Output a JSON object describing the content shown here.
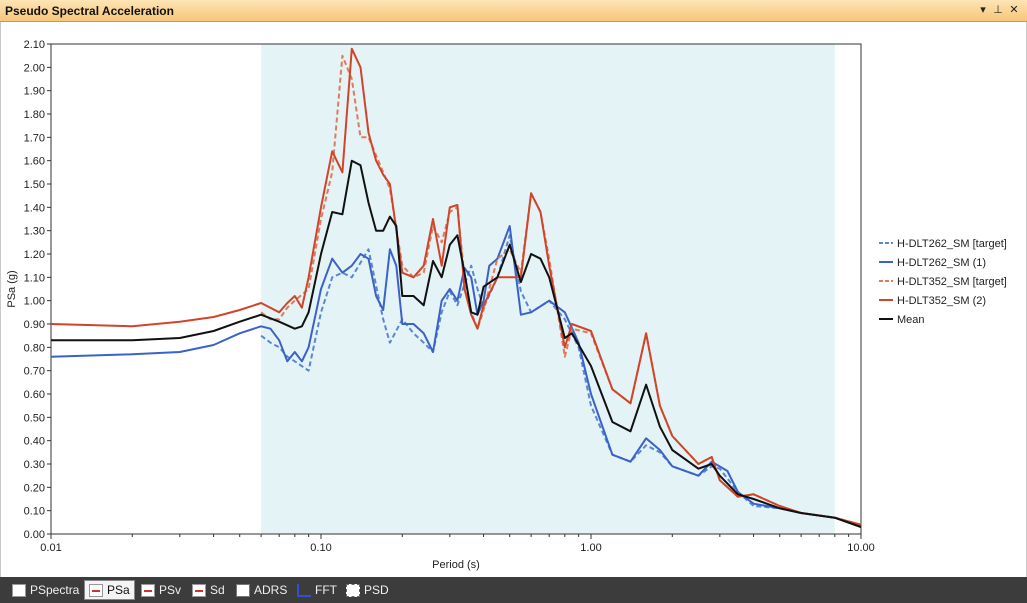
{
  "window": {
    "title": "Pseudo Spectral Acceleration",
    "controls": {
      "dropdown": "▾",
      "pin": "⊥",
      "close": "✕"
    }
  },
  "tabs": [
    {
      "label": "PSpectra",
      "icon": "document-icon",
      "active": false
    },
    {
      "label": "PSa",
      "icon": "chart-icon",
      "active": true
    },
    {
      "label": "PSv",
      "icon": "chart-icon",
      "active": false
    },
    {
      "label": "Sd",
      "icon": "chart-icon",
      "active": false
    },
    {
      "label": "ADRS",
      "icon": "grid-chart-icon",
      "active": false
    },
    {
      "label": "FFT",
      "icon": "fft-icon",
      "active": false
    },
    {
      "label": "PSD",
      "icon": "psd-icon",
      "active": false
    }
  ],
  "colors": {
    "highlight_band": "#e4f3f5",
    "blue": "#3a62c8",
    "red": "#d2442a",
    "mean": "#111111"
  },
  "chart_data": {
    "type": "line",
    "xlabel": "Period (s)",
    "ylabel": "PSa (g)",
    "x_scale": "log",
    "xlim": [
      0.01,
      10.0
    ],
    "ylim": [
      0.0,
      2.1
    ],
    "x_ticks": [
      "0.01",
      "0.10",
      "1.00",
      "10.00"
    ],
    "y_ticks": [
      "0.00",
      "0.10",
      "0.20",
      "0.30",
      "0.40",
      "0.50",
      "0.60",
      "0.70",
      "0.80",
      "0.90",
      "1.00",
      "1.10",
      "1.20",
      "1.30",
      "1.40",
      "1.50",
      "1.60",
      "1.70",
      "1.80",
      "1.90",
      "2.00",
      "2.10"
    ],
    "highlight_range": [
      0.06,
      8.0
    ],
    "grid": false,
    "legend_position": "right",
    "series": [
      {
        "name": "H-DLT262_SM [target]",
        "color": "#5b86d6",
        "dash": true,
        "points": [
          [
            0.06,
            0.85
          ],
          [
            0.065,
            0.82
          ],
          [
            0.07,
            0.8
          ],
          [
            0.075,
            0.76
          ],
          [
            0.08,
            0.74
          ],
          [
            0.09,
            0.7
          ],
          [
            0.1,
            0.95
          ],
          [
            0.11,
            1.1
          ],
          [
            0.12,
            1.12
          ],
          [
            0.13,
            1.1
          ],
          [
            0.15,
            1.22
          ],
          [
            0.17,
            0.92
          ],
          [
            0.18,
            0.82
          ],
          [
            0.2,
            0.92
          ],
          [
            0.22,
            0.86
          ],
          [
            0.24,
            0.82
          ],
          [
            0.26,
            0.78
          ],
          [
            0.28,
            0.95
          ],
          [
            0.3,
            1.04
          ],
          [
            0.32,
            0.98
          ],
          [
            0.34,
            1.07
          ],
          [
            0.36,
            1.15
          ],
          [
            0.38,
            1.05
          ],
          [
            0.4,
            0.97
          ],
          [
            0.45,
            1.1
          ],
          [
            0.5,
            1.28
          ],
          [
            0.55,
            1.04
          ],
          [
            0.6,
            0.95
          ],
          [
            0.7,
            1.0
          ],
          [
            0.8,
            0.92
          ],
          [
            0.9,
            0.8
          ],
          [
            1.0,
            0.55
          ],
          [
            1.2,
            0.34
          ],
          [
            1.4,
            0.31
          ],
          [
            1.6,
            0.38
          ],
          [
            1.8,
            0.35
          ],
          [
            2.0,
            0.29
          ],
          [
            2.5,
            0.25
          ],
          [
            2.8,
            0.29
          ],
          [
            3.0,
            0.28
          ],
          [
            3.5,
            0.18
          ],
          [
            4.0,
            0.12
          ],
          [
            5.0,
            0.11
          ],
          [
            6.0,
            0.09
          ],
          [
            8.0,
            0.07
          ],
          [
            10.0,
            0.03
          ]
        ]
      },
      {
        "name": "H-DLT262_SM (1)",
        "color": "#3a62c8",
        "dash": false,
        "points": [
          [
            0.01,
            0.76
          ],
          [
            0.02,
            0.77
          ],
          [
            0.03,
            0.78
          ],
          [
            0.04,
            0.81
          ],
          [
            0.05,
            0.86
          ],
          [
            0.06,
            0.89
          ],
          [
            0.065,
            0.88
          ],
          [
            0.07,
            0.83
          ],
          [
            0.075,
            0.74
          ],
          [
            0.08,
            0.78
          ],
          [
            0.085,
            0.74
          ],
          [
            0.09,
            0.8
          ],
          [
            0.1,
            1.05
          ],
          [
            0.11,
            1.18
          ],
          [
            0.12,
            1.12
          ],
          [
            0.13,
            1.15
          ],
          [
            0.14,
            1.2
          ],
          [
            0.15,
            1.18
          ],
          [
            0.16,
            1.02
          ],
          [
            0.17,
            0.96
          ],
          [
            0.18,
            1.22
          ],
          [
            0.19,
            1.15
          ],
          [
            0.2,
            0.9
          ],
          [
            0.22,
            0.9
          ],
          [
            0.24,
            0.86
          ],
          [
            0.26,
            0.78
          ],
          [
            0.28,
            1.0
          ],
          [
            0.3,
            1.05
          ],
          [
            0.32,
            1.0
          ],
          [
            0.34,
            1.14
          ],
          [
            0.36,
            1.1
          ],
          [
            0.38,
            0.94
          ],
          [
            0.4,
            1.0
          ],
          [
            0.42,
            1.15
          ],
          [
            0.45,
            1.18
          ],
          [
            0.5,
            1.32
          ],
          [
            0.55,
            0.94
          ],
          [
            0.6,
            0.95
          ],
          [
            0.7,
            1.0
          ],
          [
            0.8,
            0.95
          ],
          [
            0.9,
            0.82
          ],
          [
            1.0,
            0.6
          ],
          [
            1.2,
            0.34
          ],
          [
            1.4,
            0.31
          ],
          [
            1.6,
            0.41
          ],
          [
            1.8,
            0.36
          ],
          [
            2.0,
            0.29
          ],
          [
            2.5,
            0.25
          ],
          [
            2.8,
            0.31
          ],
          [
            3.2,
            0.27
          ],
          [
            3.5,
            0.18
          ],
          [
            4.0,
            0.13
          ],
          [
            5.0,
            0.11
          ],
          [
            6.0,
            0.09
          ],
          [
            8.0,
            0.07
          ],
          [
            10.0,
            0.03
          ]
        ]
      },
      {
        "name": "H-DLT352_SM [target]",
        "color": "#e07a5c",
        "dash": true,
        "points": [
          [
            0.06,
            0.95
          ],
          [
            0.065,
            0.92
          ],
          [
            0.07,
            0.92
          ],
          [
            0.075,
            0.97
          ],
          [
            0.08,
            1.0
          ],
          [
            0.09,
            1.05
          ],
          [
            0.1,
            1.35
          ],
          [
            0.11,
            1.55
          ],
          [
            0.12,
            2.05
          ],
          [
            0.13,
            1.95
          ],
          [
            0.14,
            1.7
          ],
          [
            0.15,
            1.7
          ],
          [
            0.17,
            1.55
          ],
          [
            0.18,
            1.48
          ],
          [
            0.2,
            1.15
          ],
          [
            0.22,
            1.1
          ],
          [
            0.24,
            1.12
          ],
          [
            0.26,
            1.32
          ],
          [
            0.28,
            1.25
          ],
          [
            0.3,
            1.38
          ],
          [
            0.32,
            1.4
          ],
          [
            0.34,
            1.1
          ],
          [
            0.36,
            0.95
          ],
          [
            0.38,
            0.88
          ],
          [
            0.4,
            0.96
          ],
          [
            0.45,
            1.18
          ],
          [
            0.5,
            1.22
          ],
          [
            0.55,
            1.12
          ],
          [
            0.6,
            1.46
          ],
          [
            0.65,
            1.38
          ],
          [
            0.7,
            1.18
          ],
          [
            0.8,
            0.76
          ],
          [
            0.85,
            0.88
          ],
          [
            1.0,
            0.86
          ],
          [
            1.2,
            0.62
          ],
          [
            1.4,
            0.56
          ],
          [
            1.6,
            0.86
          ],
          [
            1.8,
            0.55
          ],
          [
            2.0,
            0.42
          ],
          [
            2.5,
            0.3
          ],
          [
            2.8,
            0.33
          ],
          [
            3.0,
            0.23
          ],
          [
            3.5,
            0.16
          ],
          [
            4.0,
            0.17
          ],
          [
            5.0,
            0.12
          ],
          [
            6.0,
            0.09
          ],
          [
            8.0,
            0.07
          ],
          [
            10.0,
            0.04
          ]
        ]
      },
      {
        "name": "H-DLT352_SM (2)",
        "color": "#d2442a",
        "dash": false,
        "points": [
          [
            0.01,
            0.9
          ],
          [
            0.02,
            0.89
          ],
          [
            0.03,
            0.91
          ],
          [
            0.04,
            0.93
          ],
          [
            0.05,
            0.96
          ],
          [
            0.06,
            0.99
          ],
          [
            0.07,
            0.95
          ],
          [
            0.075,
            0.99
          ],
          [
            0.08,
            1.02
          ],
          [
            0.085,
            0.97
          ],
          [
            0.09,
            1.1
          ],
          [
            0.1,
            1.4
          ],
          [
            0.11,
            1.64
          ],
          [
            0.12,
            1.55
          ],
          [
            0.13,
            2.08
          ],
          [
            0.14,
            2.0
          ],
          [
            0.15,
            1.72
          ],
          [
            0.16,
            1.6
          ],
          [
            0.17,
            1.54
          ],
          [
            0.18,
            1.5
          ],
          [
            0.2,
            1.12
          ],
          [
            0.22,
            1.1
          ],
          [
            0.24,
            1.15
          ],
          [
            0.26,
            1.35
          ],
          [
            0.28,
            1.15
          ],
          [
            0.3,
            1.4
          ],
          [
            0.32,
            1.41
          ],
          [
            0.34,
            1.05
          ],
          [
            0.36,
            0.94
          ],
          [
            0.38,
            0.88
          ],
          [
            0.4,
            0.98
          ],
          [
            0.45,
            1.1
          ],
          [
            0.5,
            1.1
          ],
          [
            0.55,
            1.1
          ],
          [
            0.6,
            1.46
          ],
          [
            0.65,
            1.38
          ],
          [
            0.7,
            1.15
          ],
          [
            0.8,
            0.8
          ],
          [
            0.85,
            0.9
          ],
          [
            1.0,
            0.87
          ],
          [
            1.2,
            0.62
          ],
          [
            1.4,
            0.56
          ],
          [
            1.6,
            0.86
          ],
          [
            1.8,
            0.55
          ],
          [
            2.0,
            0.42
          ],
          [
            2.5,
            0.3
          ],
          [
            2.8,
            0.33
          ],
          [
            3.0,
            0.23
          ],
          [
            3.5,
            0.16
          ],
          [
            4.0,
            0.17
          ],
          [
            5.0,
            0.12
          ],
          [
            6.0,
            0.09
          ],
          [
            8.0,
            0.07
          ],
          [
            10.0,
            0.04
          ]
        ]
      },
      {
        "name": "Mean",
        "color": "#111111",
        "dash": false,
        "points": [
          [
            0.01,
            0.83
          ],
          [
            0.02,
            0.83
          ],
          [
            0.03,
            0.84
          ],
          [
            0.04,
            0.87
          ],
          [
            0.05,
            0.91
          ],
          [
            0.06,
            0.94
          ],
          [
            0.07,
            0.91
          ],
          [
            0.08,
            0.88
          ],
          [
            0.085,
            0.89
          ],
          [
            0.09,
            0.95
          ],
          [
            0.1,
            1.2
          ],
          [
            0.11,
            1.38
          ],
          [
            0.12,
            1.37
          ],
          [
            0.13,
            1.6
          ],
          [
            0.14,
            1.58
          ],
          [
            0.15,
            1.42
          ],
          [
            0.16,
            1.3
          ],
          [
            0.17,
            1.3
          ],
          [
            0.18,
            1.36
          ],
          [
            0.19,
            1.32
          ],
          [
            0.2,
            1.02
          ],
          [
            0.22,
            1.02
          ],
          [
            0.24,
            0.98
          ],
          [
            0.26,
            1.17
          ],
          [
            0.28,
            1.1
          ],
          [
            0.3,
            1.24
          ],
          [
            0.32,
            1.28
          ],
          [
            0.34,
            1.12
          ],
          [
            0.36,
            0.95
          ],
          [
            0.38,
            0.94
          ],
          [
            0.4,
            1.06
          ],
          [
            0.45,
            1.1
          ],
          [
            0.5,
            1.24
          ],
          [
            0.55,
            1.08
          ],
          [
            0.6,
            1.2
          ],
          [
            0.65,
            1.18
          ],
          [
            0.7,
            1.1
          ],
          [
            0.8,
            0.84
          ],
          [
            0.85,
            0.86
          ],
          [
            1.0,
            0.72
          ],
          [
            1.2,
            0.48
          ],
          [
            1.4,
            0.44
          ],
          [
            1.6,
            0.64
          ],
          [
            1.8,
            0.46
          ],
          [
            2.0,
            0.36
          ],
          [
            2.5,
            0.28
          ],
          [
            2.8,
            0.3
          ],
          [
            3.0,
            0.25
          ],
          [
            3.5,
            0.17
          ],
          [
            4.0,
            0.15
          ],
          [
            5.0,
            0.11
          ],
          [
            6.0,
            0.09
          ],
          [
            8.0,
            0.07
          ],
          [
            10.0,
            0.03
          ]
        ]
      }
    ]
  }
}
